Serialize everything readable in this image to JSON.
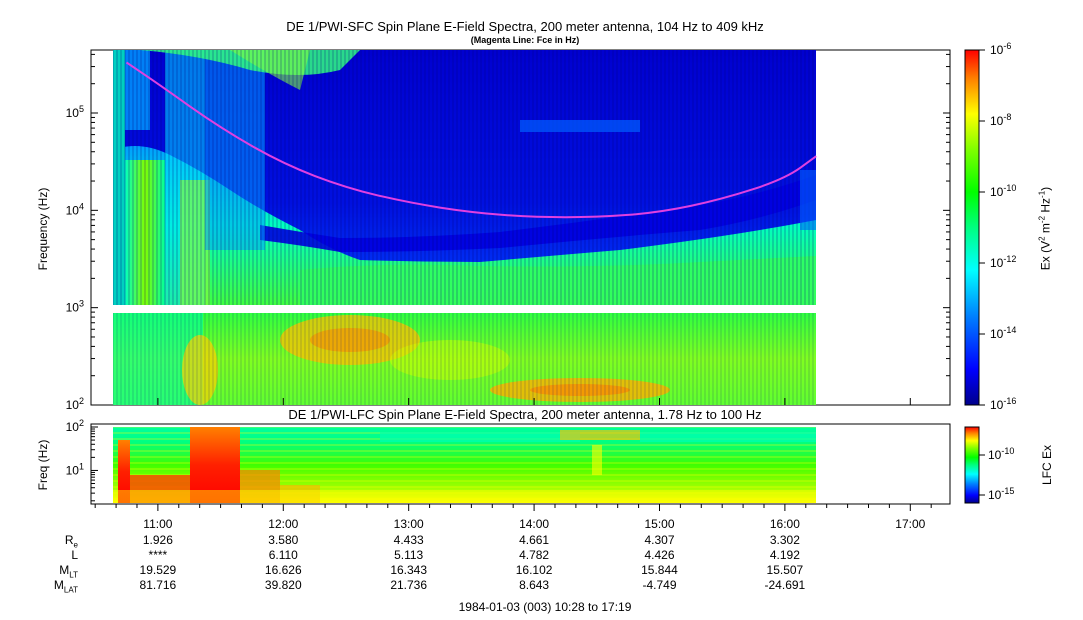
{
  "chart_data": [
    {
      "type": "heatmap",
      "title": "DE 1/PWI-SFC  Spin Plane E-Field Spectra, 200 meter antenna, 104 Hz to 409 kHz",
      "subtitle": "(Magenta Line: Fce in Hz)",
      "ylabel": "Frequency (Hz)",
      "yscale": "log",
      "ylim": [
        100,
        409000
      ],
      "yticks": [
        {
          "value": 100,
          "base": "10",
          "exp": "2"
        },
        {
          "value": 1000,
          "base": "10",
          "exp": "3"
        },
        {
          "value": 10000,
          "base": "10",
          "exp": "4"
        },
        {
          "value": 100000,
          "base": "10",
          "exp": "5"
        }
      ],
      "colorbar": {
        "label": "Ex (V² m⁻² Hz⁻¹)",
        "scale": "log",
        "range": [
          1e-16,
          1e-06
        ],
        "ticks": [
          {
            "base": "10",
            "exp": "-6"
          },
          {
            "base": "10",
            "exp": "-8"
          },
          {
            "base": "10",
            "exp": "-10"
          },
          {
            "base": "10",
            "exp": "-12"
          },
          {
            "base": "10",
            "exp": "-14"
          },
          {
            "base": "10",
            "exp": "-16"
          }
        ]
      },
      "overlay": {
        "name": "Fce",
        "color": "#e040e0",
        "points": [
          {
            "t": "10:45",
            "f": 330000
          },
          {
            "t": "11:00",
            "f": 200000
          },
          {
            "t": "11:30",
            "f": 70000
          },
          {
            "t": "12:00",
            "f": 30000
          },
          {
            "t": "12:30",
            "f": 17000
          },
          {
            "t": "13:00",
            "f": 12000
          },
          {
            "t": "13:30",
            "f": 9500
          },
          {
            "t": "14:00",
            "f": 8500
          },
          {
            "t": "14:30",
            "f": 8500
          },
          {
            "t": "15:00",
            "f": 9500
          },
          {
            "t": "15:30",
            "f": 13000
          },
          {
            "t": "16:00",
            "f": 21000
          },
          {
            "t": "16:15",
            "f": 36000
          }
        ]
      },
      "data_start": "10:37",
      "data_end": "16:15"
    },
    {
      "type": "heatmap",
      "title": "DE 1/PWI-LFC  Spin Plane E-Field Spectra, 200 meter antenna, 1.78 Hz to 100 Hz",
      "ylabel": "Freq (Hz)",
      "yscale": "log",
      "ylim": [
        1.78,
        100
      ],
      "yticks": [
        {
          "value": 10,
          "base": "10",
          "exp": "1"
        },
        {
          "value": 100,
          "base": "10",
          "exp": "2"
        }
      ],
      "colorbar": {
        "label": "LFC Ex",
        "scale": "log",
        "ticks": [
          {
            "base": "10",
            "exp": "-10"
          },
          {
            "base": "10",
            "exp": "-15"
          }
        ]
      },
      "data_start": "10:37",
      "data_end": "16:15"
    }
  ],
  "time_axis": {
    "ticks": [
      "11:00",
      "12:00",
      "13:00",
      "14:00",
      "15:00",
      "16:00",
      "17:00"
    ],
    "range": [
      "10:28",
      "17:19"
    ]
  },
  "ephemeris": {
    "rows": [
      {
        "label": "R",
        "sub": "e",
        "values": [
          "1.926",
          "3.580",
          "4.433",
          "4.661",
          "4.307",
          "3.302"
        ]
      },
      {
        "label": "L",
        "sub": "",
        "values": [
          "****",
          "6.110",
          "5.113",
          "4.782",
          "4.426",
          "4.192"
        ]
      },
      {
        "label": "M",
        "sub": "LT",
        "values": [
          "19.529",
          "16.626",
          "16.343",
          "16.102",
          "15.844",
          "15.507"
        ]
      },
      {
        "label": "M",
        "sub": "LAT",
        "values": [
          "81.716",
          "39.820",
          "21.736",
          "8.643",
          "-4.749",
          "-24.691"
        ]
      }
    ]
  },
  "footer": "1984-01-03 (003) 10:28 to 17:19",
  "colors": {
    "colormap": [
      "#00008b",
      "#0000ff",
      "#0080ff",
      "#00ffff",
      "#00ff80",
      "#00ff00",
      "#80ff00",
      "#ffff00",
      "#ff8000",
      "#ff0000"
    ],
    "fce_line": "#e040e0"
  }
}
